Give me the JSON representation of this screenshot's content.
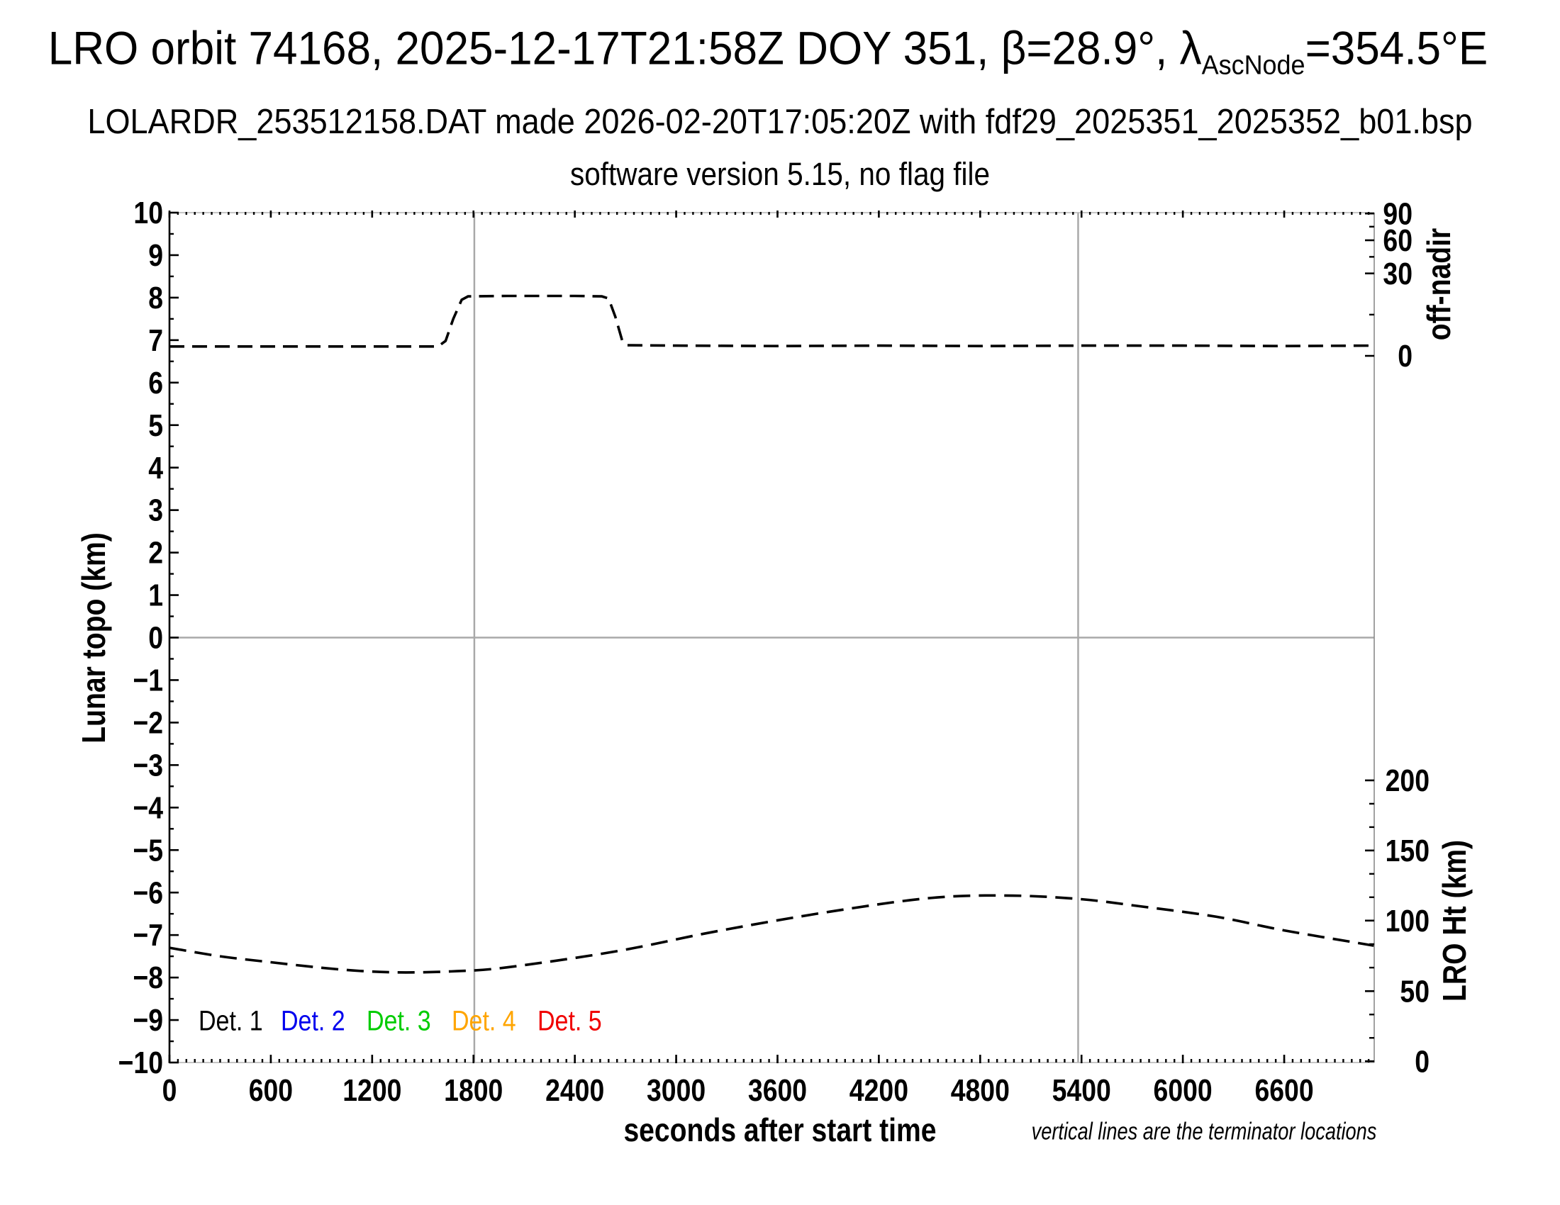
{
  "title": {
    "prefix": "LRO orbit 74168, 2025-12-17T21:58Z DOY 351, β=28.9°, λ",
    "subscript": "AscNode",
    "suffix": "=354.5°E"
  },
  "subtitle": "LOLARDR_253512158.DAT made 2026-02-20T17:05:20Z with fdf29_2025351_2025352_b01.bsp",
  "subtitle2": "software version 5.15, no flag file",
  "footnote": "vertical lines are the terminator locations",
  "legend": {
    "items": [
      {
        "label": "Det. 1",
        "color": "#000000"
      },
      {
        "label": "Det. 2",
        "color": "#0000ee"
      },
      {
        "label": "Det. 3",
        "color": "#00cc00"
      },
      {
        "label": "Det. 4",
        "color": "#ffa500"
      },
      {
        "label": "Det. 5",
        "color": "#f00000"
      }
    ]
  },
  "chart_data": {
    "type": "line",
    "xlabel": "seconds after start time",
    "ylabel_left": "Lunar topo (km)",
    "ylabel_right_top": "off-nadir",
    "ylabel_right_bottom": "LRO Ht (km)",
    "xlim": [
      0,
      7133
    ],
    "ylim": [
      -10,
      10
    ],
    "x_major_ticks": [
      0,
      600,
      1200,
      1800,
      2400,
      3000,
      3600,
      4200,
      4800,
      5400,
      6000,
      6600
    ],
    "x_minor_step": 50,
    "y_major_step": 1,
    "y_minor_step": 0.5,
    "off_nadir_ticks": [
      {
        "label": "90",
        "km": 9.98
      },
      {
        "label": "60",
        "km": 9.35
      },
      {
        "label": "30",
        "km": 8.57
      },
      {
        "label": "0",
        "km": 6.63
      }
    ],
    "off_nadir_minor_km": [
      9.67,
      8.96,
      7.6
    ],
    "lro_ht_ticks": [
      {
        "label": "200",
        "km": -3.36
      },
      {
        "label": "150",
        "km": -5.01
      },
      {
        "label": "100",
        "km": -6.66
      },
      {
        "label": "50",
        "km": -8.32
      },
      {
        "label": "0",
        "km": -9.97
      }
    ],
    "terminator_lines_s": [
      1805,
      5380
    ],
    "zero_line_km": 0,
    "grid_color": "#a9a9a9",
    "series": [
      {
        "name": "off-nadir angle",
        "color": "#000000",
        "dash": [
          21,
          11
        ],
        "width": 3.6,
        "smooth": false,
        "points": [
          [
            0,
            6.85
          ],
          [
            300,
            6.85
          ],
          [
            600,
            6.85
          ],
          [
            900,
            6.85
          ],
          [
            1200,
            6.85
          ],
          [
            1500,
            6.85
          ],
          [
            1590,
            6.85
          ],
          [
            1635,
            6.98
          ],
          [
            1680,
            7.5
          ],
          [
            1730,
            7.95
          ],
          [
            1768,
            8.03
          ],
          [
            2000,
            8.04
          ],
          [
            2200,
            8.04
          ],
          [
            2400,
            8.04
          ],
          [
            2560,
            8.03
          ],
          [
            2600,
            7.98
          ],
          [
            2640,
            7.55
          ],
          [
            2680,
            7.0
          ],
          [
            2705,
            6.88
          ],
          [
            3000,
            6.87
          ],
          [
            3600,
            6.86
          ],
          [
            4200,
            6.87
          ],
          [
            4800,
            6.86
          ],
          [
            5400,
            6.87
          ],
          [
            6000,
            6.87
          ],
          [
            6600,
            6.86
          ],
          [
            7130,
            6.87
          ]
        ]
      },
      {
        "name": "LRO height",
        "color": "#000000",
        "dash": [
          24,
          12
        ],
        "width": 3.6,
        "smooth": true,
        "points": [
          [
            0,
            -7.3
          ],
          [
            300,
            -7.5
          ],
          [
            600,
            -7.64
          ],
          [
            900,
            -7.77
          ],
          [
            1150,
            -7.85
          ],
          [
            1400,
            -7.88
          ],
          [
            1700,
            -7.85
          ],
          [
            2000,
            -7.76
          ],
          [
            2650,
            -7.38
          ],
          [
            3240,
            -6.91
          ],
          [
            3910,
            -6.45
          ],
          [
            4500,
            -6.13
          ],
          [
            4950,
            -6.07
          ],
          [
            5380,
            -6.15
          ],
          [
            5760,
            -6.33
          ],
          [
            6200,
            -6.57
          ],
          [
            6600,
            -6.89
          ],
          [
            7130,
            -7.25
          ]
        ]
      }
    ]
  }
}
